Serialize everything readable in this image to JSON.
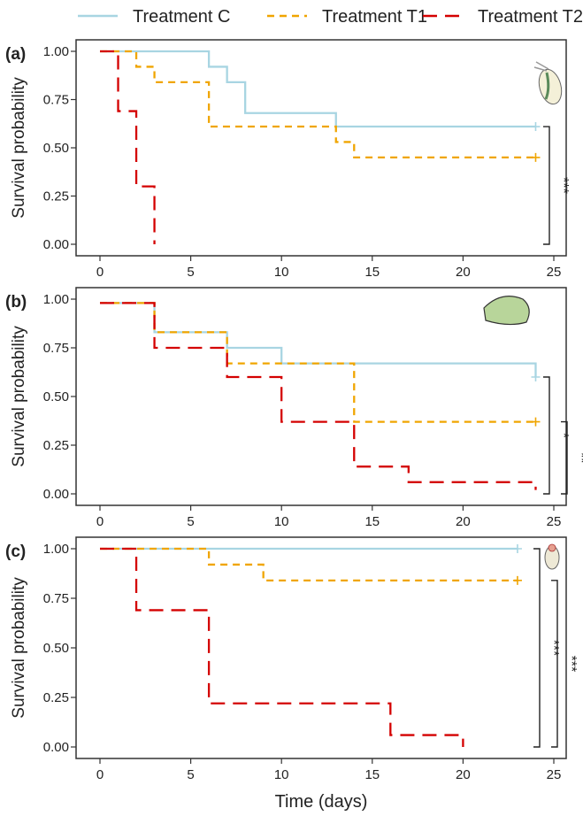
{
  "chart_data": {
    "type": "line",
    "subtype": "kaplan-meier step",
    "xlabel": "Time (days)",
    "legend": {
      "placement": "top",
      "entries": [
        {
          "name": "Treatment C",
          "color": "#a8d5e2",
          "style": "solid"
        },
        {
          "name": "Treatment T1",
          "color": "#f0a500",
          "style": "dashed"
        },
        {
          "name": "Treatment T2",
          "color": "#d40000",
          "style": "long-dashed"
        }
      ]
    },
    "xlim": [
      -1,
      26
    ],
    "ylim": [
      -0.05,
      1.05
    ],
    "xticks": [
      0,
      5,
      10,
      15,
      20,
      25
    ],
    "yticks": [
      "0.00",
      "0.25",
      "0.50",
      "0.75",
      "1.00"
    ],
    "panels": [
      {
        "label": "(a)",
        "ylabel": "Survival probability",
        "series": [
          {
            "name": "Treatment C",
            "steps": [
              [
                0,
                1
              ],
              [
                6,
                0.92
              ],
              [
                7,
                0.84
              ],
              [
                8,
                0.68
              ],
              [
                13,
                0.61
              ]
            ],
            "end": 24,
            "censored": [
              [
                24,
                0.61
              ]
            ]
          },
          {
            "name": "Treatment T1",
            "steps": [
              [
                2,
                1
              ],
              [
                2,
                0.92
              ],
              [
                3,
                0.84
              ],
              [
                6,
                0.61
              ],
              [
                13,
                0.53
              ],
              [
                14,
                0.45
              ]
            ],
            "end": 24,
            "censored": [
              [
                24,
                0.45
              ]
            ]
          },
          {
            "name": "Treatment T2",
            "steps": [
              [
                0,
                1
              ],
              [
                1,
                0.69
              ],
              [
                2,
                0.3
              ],
              [
                3,
                0
              ]
            ],
            "end": 3,
            "censored": []
          }
        ],
        "comparisons": [
          {
            "pair": "C vs T2",
            "label": "***",
            "from": 0.61,
            "to": 0
          }
        ]
      },
      {
        "label": "(b)",
        "ylabel": "Survival probability",
        "series": [
          {
            "name": "Treatment C",
            "steps": [
              [
                0,
                0.98
              ],
              [
                3,
                0.83
              ],
              [
                7,
                0.75
              ],
              [
                10,
                0.67
              ],
              [
                24,
                0.6
              ]
            ],
            "end": 24,
            "censored": [
              [
                24,
                0.6
              ]
            ]
          },
          {
            "name": "Treatment T1",
            "steps": [
              [
                0,
                0.98
              ],
              [
                3,
                0.83
              ],
              [
                7,
                0.67
              ],
              [
                14,
                0.37
              ]
            ],
            "end": 24,
            "censored": [
              [
                24,
                0.37
              ]
            ]
          },
          {
            "name": "Treatment T2",
            "steps": [
              [
                0,
                0.98
              ],
              [
                3,
                0.75
              ],
              [
                7,
                0.6
              ],
              [
                10,
                0.37
              ],
              [
                14,
                0.14
              ],
              [
                17,
                0.06
              ],
              [
                24,
                0.02
              ]
            ],
            "end": 24,
            "censored": []
          }
        ],
        "comparisons": [
          {
            "pair": "C vs T2",
            "label": "*",
            "from": 0.6,
            "to": 0
          },
          {
            "pair": "T1 vs T2",
            "label": "**",
            "from": 0.37,
            "to": 0
          }
        ]
      },
      {
        "label": "(c)",
        "ylabel": "Survival probability",
        "series": [
          {
            "name": "Treatment C",
            "steps": [
              [
                0,
                1
              ]
            ],
            "end": 23,
            "censored": [
              [
                23,
                1
              ]
            ]
          },
          {
            "name": "Treatment T1",
            "steps": [
              [
                0,
                1
              ],
              [
                6,
                0.92
              ],
              [
                9,
                0.84
              ]
            ],
            "end": 23,
            "censored": [
              [
                23,
                0.84
              ]
            ]
          },
          {
            "name": "Treatment T2",
            "steps": [
              [
                0,
                1
              ],
              [
                2,
                0.69
              ],
              [
                6,
                0.22
              ],
              [
                16,
                0.06
              ],
              [
                20,
                0
              ]
            ],
            "end": 20,
            "censored": []
          }
        ],
        "comparisons": [
          {
            "pair": "C vs T2",
            "label": "***",
            "from": 1,
            "to": 0
          },
          {
            "pair": "T1 vs T2",
            "label": "***",
            "from": 0.84,
            "to": 0
          }
        ]
      }
    ]
  }
}
